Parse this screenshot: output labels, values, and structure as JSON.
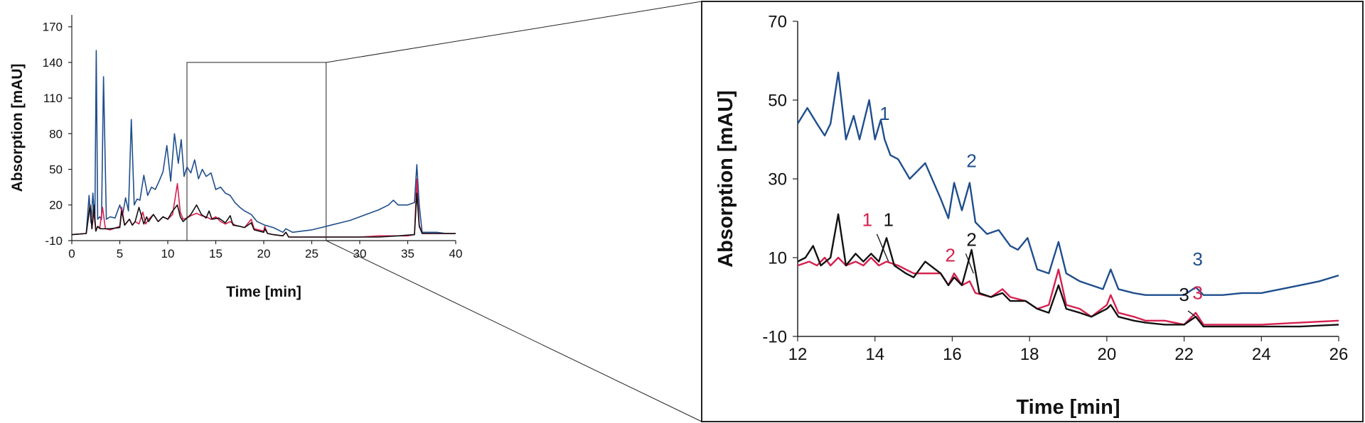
{
  "colors": {
    "blue": "#1f4e8c",
    "red": "#d6204f",
    "black": "#111111"
  },
  "chart_data": [
    {
      "type": "line",
      "xlabel": "Time [min]",
      "ylabel": "Absorption [mAU]",
      "xlim": [
        0,
        40
      ],
      "ylim": [
        -10,
        180
      ],
      "xticks": [
        "0",
        "5",
        "10",
        "15",
        "20",
        "25",
        "30",
        "35",
        "40"
      ],
      "yticks": [
        "-10",
        "20",
        "50",
        "80",
        "110",
        "140",
        "170"
      ],
      "zoom_window": {
        "x": [
          12,
          26.5
        ],
        "y": [
          -10,
          140
        ]
      },
      "series": [
        {
          "color": "#1f4e8c",
          "x": [
            0,
            1.5,
            1.8,
            2.0,
            2.2,
            2.4,
            2.55,
            2.7,
            2.9,
            3.1,
            3.3,
            3.6,
            4.0,
            4.5,
            5.0,
            5.3,
            5.6,
            5.9,
            6.2,
            6.5,
            6.8,
            7.1,
            7.5,
            7.9,
            8.3,
            8.7,
            9.1,
            9.5,
            9.9,
            10.3,
            10.7,
            11.1,
            11.4,
            11.7,
            12.0,
            12.4,
            12.8,
            13.2,
            13.6,
            14.0,
            14.5,
            15.0,
            15.5,
            16.0,
            16.5,
            17.0,
            17.5,
            18.0,
            18.7,
            19.3,
            20.1,
            21.0,
            22.0,
            22.3,
            23.0,
            24.0,
            25.0,
            26.0,
            27.0,
            28.0,
            29.0,
            30.0,
            31.0,
            32.0,
            33.0,
            33.5,
            34.0,
            35.0,
            35.7,
            35.95,
            36.2,
            36.5,
            37.0,
            38.0,
            39.0,
            40.0
          ],
          "y": [
            -5,
            -4,
            28,
            5,
            30,
            5,
            150,
            8,
            10,
            8,
            128,
            8,
            10,
            9,
            20,
            12,
            26,
            15,
            92,
            20,
            25,
            24,
            45,
            28,
            35,
            33,
            40,
            48,
            70,
            40,
            80,
            55,
            75,
            44,
            52,
            47,
            58,
            42,
            50,
            44,
            47,
            33,
            35,
            30,
            28,
            22,
            18,
            15,
            12,
            6,
            3,
            1,
            -3,
            0,
            -3,
            -2,
            -1,
            1,
            3,
            5,
            7,
            10,
            13,
            16,
            20,
            24,
            20,
            20,
            22,
            54,
            20,
            -3,
            -3,
            -3,
            -4,
            -4
          ]
        },
        {
          "color": "#d6204f",
          "x": [
            0,
            1.5,
            1.9,
            2.1,
            2.3,
            2.5,
            2.7,
            2.9,
            3.2,
            3.5,
            4.0,
            5.0,
            5.2,
            5.5,
            6.0,
            6.3,
            6.6,
            7.0,
            7.4,
            7.7,
            8.0,
            8.5,
            9.0,
            9.5,
            10.0,
            10.5,
            11.0,
            11.3,
            11.6,
            12.0,
            12.4,
            13.0,
            13.5,
            14.0,
            14.5,
            15.0,
            15.5,
            16.0,
            16.5,
            17.0,
            18.0,
            18.7,
            19.0,
            20.0,
            20.1,
            20.4,
            21.0,
            22.0,
            22.3,
            22.6,
            24.0,
            26.0,
            28.0,
            30.0,
            32.0,
            33.0,
            34.0,
            35.0,
            35.7,
            35.95,
            36.2,
            36.5,
            38.0,
            40.0
          ],
          "y": [
            -5,
            -4,
            20,
            0,
            15,
            -2,
            2,
            0,
            18,
            0,
            -1,
            2,
            18,
            3,
            8,
            3,
            6,
            4,
            14,
            4,
            8,
            12,
            6,
            10,
            8,
            12,
            38,
            14,
            8,
            9,
            11,
            13,
            11,
            10,
            8,
            10,
            6,
            4,
            6,
            3,
            1,
            8,
            0,
            -2,
            2,
            -4,
            -5,
            -6,
            -3,
            -7,
            -7,
            -7,
            -7,
            -7,
            -6,
            -6,
            -6,
            -6,
            -5,
            42,
            3,
            -4,
            -4,
            -4
          ]
        },
        {
          "color": "#111111",
          "x": [
            0,
            1.5,
            1.9,
            2.1,
            2.3,
            2.5,
            2.7,
            3.0,
            3.5,
            4.0,
            5.0,
            5.2,
            5.5,
            6.0,
            6.3,
            6.6,
            7.0,
            7.5,
            7.8,
            8.0,
            8.5,
            9.0,
            9.5,
            10.0,
            10.5,
            11.0,
            11.3,
            11.6,
            12.0,
            12.4,
            13.0,
            13.5,
            14.0,
            14.3,
            14.6,
            15.3,
            16.0,
            16.5,
            16.8,
            17.5,
            18.0,
            18.7,
            19.0,
            20.0,
            20.1,
            20.4,
            21.0,
            22.0,
            22.3,
            22.6,
            24.0,
            26.0,
            28.0,
            30.0,
            32.0,
            34.0,
            35.7,
            35.95,
            36.2,
            36.5,
            38.0,
            40.0
          ],
          "y": [
            -5,
            -4,
            20,
            0,
            20,
            -2,
            2,
            0,
            0,
            0,
            1,
            15,
            3,
            8,
            3,
            6,
            18,
            4,
            10,
            6,
            12,
            6,
            10,
            8,
            15,
            20,
            10,
            6,
            9,
            12,
            20,
            12,
            9,
            15,
            8,
            9,
            5,
            11,
            3,
            2,
            1,
            5,
            -1,
            -3,
            0,
            -4,
            -5,
            -6,
            -3,
            -7,
            -7,
            -7,
            -7,
            -7,
            -7,
            -6,
            -5,
            30,
            2,
            -4,
            -4,
            -4
          ]
        }
      ]
    },
    {
      "type": "line",
      "xlabel": "Time [min]",
      "ylabel": "Absorption [mAU]",
      "xlim": [
        12,
        26
      ],
      "ylim": [
        -10,
        70
      ],
      "xticks": [
        "12",
        "14",
        "16",
        "18",
        "20",
        "22",
        "24",
        "26"
      ],
      "yticks": [
        "-10",
        "10",
        "30",
        "50",
        "70"
      ],
      "series": [
        {
          "color": "#1f4e8c",
          "x": [
            12.0,
            12.25,
            12.5,
            12.7,
            12.85,
            13.05,
            13.25,
            13.45,
            13.6,
            13.85,
            14.0,
            14.15,
            14.25,
            14.4,
            14.6,
            14.9,
            15.3,
            15.7,
            15.9,
            16.05,
            16.25,
            16.45,
            16.6,
            16.9,
            17.2,
            17.5,
            17.7,
            17.95,
            18.2,
            18.5,
            18.75,
            18.95,
            19.3,
            19.6,
            19.9,
            20.1,
            20.3,
            20.7,
            21.0,
            21.5,
            22.0,
            22.3,
            22.5,
            23.0,
            23.5,
            24.0,
            24.5,
            25.0,
            25.5,
            26.0
          ],
          "y": [
            44,
            48,
            44,
            41,
            44,
            57,
            40,
            46,
            40,
            50,
            40,
            45,
            40,
            36,
            35,
            30,
            34,
            25,
            20,
            29,
            22,
            29,
            19,
            16,
            17,
            13,
            12,
            15,
            7,
            6,
            14,
            6,
            4,
            3,
            2,
            7,
            2,
            1,
            0.5,
            0.5,
            0.5,
            2.5,
            0.5,
            0.5,
            1,
            1,
            2,
            3,
            4,
            5.5
          ]
        },
        {
          "color": "#d6204f",
          "x": [
            12.0,
            12.3,
            12.5,
            12.7,
            12.85,
            13.05,
            13.25,
            13.5,
            13.7,
            13.9,
            14.1,
            14.3,
            14.6,
            15.0,
            15.3,
            15.7,
            15.9,
            16.05,
            16.25,
            16.45,
            16.6,
            17.0,
            17.3,
            17.5,
            17.9,
            18.2,
            18.5,
            18.75,
            18.95,
            19.3,
            19.6,
            20.0,
            20.1,
            20.3,
            20.7,
            21.0,
            21.5,
            22.0,
            22.3,
            22.5,
            23.0,
            24.0,
            25.0,
            26.0
          ],
          "y": [
            8,
            9,
            8,
            10,
            8,
            10,
            8,
            9,
            8,
            10,
            8,
            9,
            8,
            6,
            6,
            6,
            3,
            6,
            3,
            4,
            1,
            0,
            2,
            0,
            -1,
            -3,
            -2,
            7,
            -2,
            -3,
            -5,
            -2,
            0.5,
            -4,
            -5,
            -6,
            -6,
            -7,
            -4,
            -7,
            -7,
            -7,
            -6.5,
            -6
          ]
        },
        {
          "color": "#111111",
          "x": [
            12.0,
            12.2,
            12.4,
            12.6,
            12.85,
            13.05,
            13.25,
            13.5,
            13.7,
            13.9,
            14.1,
            14.3,
            14.5,
            14.8,
            15.0,
            15.3,
            15.7,
            15.9,
            16.05,
            16.25,
            16.5,
            16.7,
            17.0,
            17.3,
            17.5,
            17.9,
            18.2,
            18.5,
            18.75,
            18.95,
            19.3,
            19.6,
            20.0,
            20.1,
            20.3,
            20.7,
            21.0,
            21.5,
            22.0,
            22.3,
            22.5,
            23.0,
            24.0,
            25.0,
            26.0
          ],
          "y": [
            9,
            10,
            13,
            8,
            10,
            21,
            8,
            11,
            9,
            11,
            9,
            15,
            8,
            6,
            5,
            9,
            6,
            3,
            5,
            3,
            12,
            1,
            0,
            1,
            -1,
            -1,
            -3,
            -4,
            3,
            -3,
            -4,
            -5,
            -3,
            -2,
            -5,
            -6,
            -6.5,
            -7,
            -7,
            -5,
            -7.5,
            -7.5,
            -7.5,
            -7.5,
            -7
          ]
        }
      ],
      "annotations": [
        {
          "text": "1",
          "color": "#1f4e8c",
          "x": 14.25,
          "y": 45
        },
        {
          "text": "2",
          "color": "#1f4e8c",
          "x": 16.5,
          "y": 33
        },
        {
          "text": "3",
          "color": "#1f4e8c",
          "x": 22.35,
          "y": 8
        },
        {
          "text": "1",
          "color": "#d6204f",
          "x": 13.8,
          "y": 18
        },
        {
          "text": "1",
          "color": "#111111",
          "x": 14.35,
          "y": 18
        },
        {
          "text": "2",
          "color": "#d6204f",
          "x": 15.95,
          "y": 9
        },
        {
          "text": "2",
          "color": "#111111",
          "x": 16.5,
          "y": 13
        },
        {
          "text": "3",
          "color": "#111111",
          "x": 22.0,
          "y": -1
        },
        {
          "text": "3",
          "color": "#d6204f",
          "x": 22.35,
          "y": -0.5
        }
      ]
    }
  ]
}
